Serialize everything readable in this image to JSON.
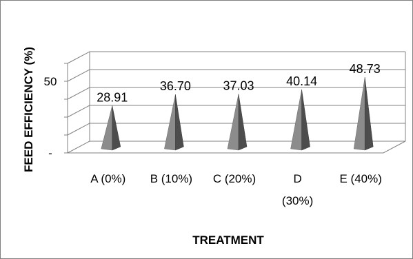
{
  "chart_data": {
    "type": "bar",
    "bar_shape": "pyramid",
    "three_d": true,
    "title": "",
    "xlabel": "TREATMENT",
    "ylabel": "FEED EFFICIENCY (%)",
    "categories": [
      [
        "A (0%)"
      ],
      [
        "B (10%)"
      ],
      [
        "C (20%)"
      ],
      [
        "D",
        "(30%)"
      ],
      [
        "E (40%)"
      ]
    ],
    "values": [
      28.91,
      36.7,
      37.03,
      40.14,
      48.73
    ],
    "value_labels": [
      "28.91",
      "36.70",
      "37.03",
      "40.14",
      "48.73"
    ],
    "yticks": [
      {
        "value": 0,
        "label": "-"
      },
      {
        "value": 50,
        "label": "50"
      }
    ],
    "ylim": [
      0,
      62.5
    ],
    "grid": true,
    "legend": "none",
    "colors": {
      "bar_light": "#8c8c8c",
      "bar_dark": "#4d4d4d",
      "grid": "#808080"
    }
  }
}
